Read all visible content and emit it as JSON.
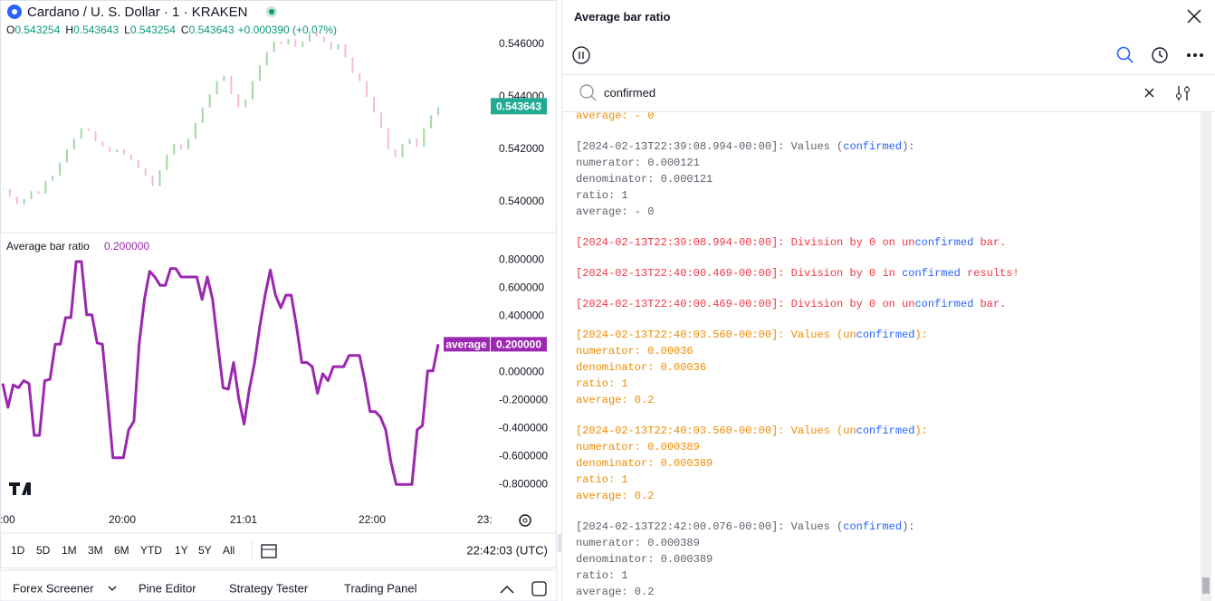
{
  "header": {
    "symbol": "Cardano / U. S. Dollar · 1 · KRAKEN",
    "ohlc": [
      {
        "key": "O",
        "value": "0.543254"
      },
      {
        "key": "H",
        "value": "0.543643"
      },
      {
        "key": "L",
        "value": "0.543254"
      },
      {
        "key": "C",
        "value": "0.543643"
      }
    ],
    "change": "+0.000390 (+0.07%)"
  },
  "chart_data": [
    {
      "type": "ohlc",
      "up_color": "#a5d6a7",
      "down_color": "#f8bbd0",
      "grid": false,
      "values": [
        0.5405,
        0.5402,
        0.5399,
        0.5401,
        0.5404,
        0.5403,
        0.5408,
        0.541,
        0.5415,
        0.542,
        0.5424,
        0.5428,
        0.5427,
        0.5423,
        0.5421,
        0.5419,
        0.542,
        0.5418,
        0.5416,
        0.5413,
        0.541,
        0.5406,
        0.5412,
        0.5418,
        0.5422,
        0.542,
        0.5424,
        0.543,
        0.5436,
        0.5441,
        0.5446,
        0.5448,
        0.5441,
        0.5436,
        0.5439,
        0.5446,
        0.5452,
        0.5457,
        0.5461,
        0.546,
        0.5462,
        0.5459,
        0.5461,
        0.5465,
        0.5463,
        0.5461,
        0.5458,
        0.546,
        0.5455,
        0.5449,
        0.5446,
        0.544,
        0.5434,
        0.5428,
        0.542,
        0.5417,
        0.5422,
        0.5424,
        0.5421,
        0.5428,
        0.5433,
        0.5436
      ],
      "ylim": [
        0.53886,
        0.54769
      ],
      "yticks": [
        {
          "value": 0.54,
          "label": "0.540000"
        },
        {
          "value": 0.542,
          "label": "0.542000"
        },
        {
          "value": 0.544,
          "label": "0.544000"
        },
        {
          "value": 0.546,
          "label": "0.546000"
        }
      ],
      "last": {
        "value": 0.543643,
        "label": "0.543643"
      },
      "last_color": "#22ab94"
    },
    {
      "type": "line",
      "title": "Average bar ratio",
      "grid": false,
      "series": [
        {
          "name": "average",
          "color": "#9c27b0",
          "values": [
            -0.08,
            -0.25,
            -0.09,
            -0.11,
            -0.06,
            -0.08,
            -0.45,
            -0.45,
            -0.06,
            -0.05,
            0.2,
            0.2,
            0.39,
            0.39,
            0.79,
            0.79,
            0.41,
            0.41,
            0.21,
            0.2,
            -0.19,
            -0.61,
            -0.61,
            -0.61,
            -0.41,
            -0.35,
            0.2,
            0.52,
            0.72,
            0.68,
            0.62,
            0.62,
            0.74,
            0.74,
            0.68,
            0.68,
            0.68,
            0.68,
            0.52,
            0.68,
            0.52,
            0.2,
            -0.11,
            -0.12,
            0.07,
            -0.19,
            -0.37,
            -0.12,
            0.07,
            0.33,
            0.55,
            0.73,
            0.55,
            0.46,
            0.55,
            0.55,
            0.33,
            0.07,
            0.07,
            0.04,
            -0.15,
            -0.01,
            -0.06,
            0.04,
            0.04,
            0.04,
            0.12,
            0.12,
            0.12,
            -0.06,
            -0.28,
            -0.28,
            -0.32,
            -0.41,
            -0.64,
            -0.8,
            -0.8,
            -0.8,
            -0.8,
            -0.41,
            -0.38,
            0.01,
            0.01,
            0.2
          ]
        }
      ],
      "ylim": [
        -0.96,
        0.99
      ],
      "yticks": [
        {
          "value": 0.8,
          "label": "0.800000"
        },
        {
          "value": 0.6,
          "label": "0.600000"
        },
        {
          "value": 0.4,
          "label": "0.400000"
        },
        {
          "value": 0.2,
          "label": "0.200000"
        },
        {
          "value": 0,
          "label": "0.000000"
        },
        {
          "value": -0.2,
          "label": "-0.200000"
        },
        {
          "value": -0.4,
          "label": "-0.400000"
        },
        {
          "value": -0.6,
          "label": "-0.600000"
        },
        {
          "value": -0.8,
          "label": "-0.800000"
        }
      ],
      "last": {
        "value": 0.2,
        "label": "0.200000"
      }
    }
  ],
  "time_axis": [
    ":00",
    "20:00",
    "21:01",
    "22:00",
    "23:"
  ],
  "toolbar": {
    "ranges": [
      "1D",
      "5D",
      "1M",
      "3M",
      "6M",
      "YTD",
      "1Y",
      "5Y",
      "All"
    ],
    "clock": "22:42:03 (UTC)"
  },
  "tabs": [
    "Forex Screener",
    "Pine Editor",
    "Strategy Tester",
    "Trading Panel"
  ],
  "logs": {
    "title": "Average bar ratio",
    "query": "confirmed",
    "highlight_color": "#2962ff",
    "colors": {
      "info": "#5d606b",
      "error": "#f23645",
      "warning": "#f08c00"
    },
    "entries": [
      {
        "level": "warning",
        "lines": [
          "average: - 0"
        ]
      },
      {
        "level": "info",
        "lines": [
          "[2024-02-13T22:39:08.994-00:00]: Values (confirmed):",
          "numerator: 0.000121",
          "denominator: 0.000121",
          "ratio: 1",
          "average: - 0"
        ]
      },
      {
        "level": "error",
        "lines": [
          "[2024-02-13T22:39:08.994-00:00]: Division by 0 on unconfirmed bar."
        ]
      },
      {
        "level": "error",
        "lines": [
          "[2024-02-13T22:40:00.469-00:00]: Division by 0 in confirmed results!"
        ]
      },
      {
        "level": "error",
        "lines": [
          "[2024-02-13T22:40:00.469-00:00]: Division by 0 on unconfirmed bar."
        ]
      },
      {
        "level": "warning",
        "lines": [
          "[2024-02-13T22:40:03.560-00:00]: Values (unconfirmed):",
          "numerator: 0.00036",
          "denominator: 0.00036",
          "ratio: 1",
          "average: 0.2"
        ]
      },
      {
        "level": "warning",
        "lines": [
          "[2024-02-13T22:40:03.560-00:00]: Values (unconfirmed):",
          "numerator: 0.000389",
          "denominator: 0.000389",
          "ratio: 1",
          "average: 0.2"
        ]
      },
      {
        "level": "info",
        "lines": [
          "[2024-02-13T22:42:00.076-00:00]: Values (confirmed):",
          "numerator: 0.000389",
          "denominator: 0.000389",
          "ratio: 1",
          "average: 0.2"
        ]
      }
    ]
  }
}
